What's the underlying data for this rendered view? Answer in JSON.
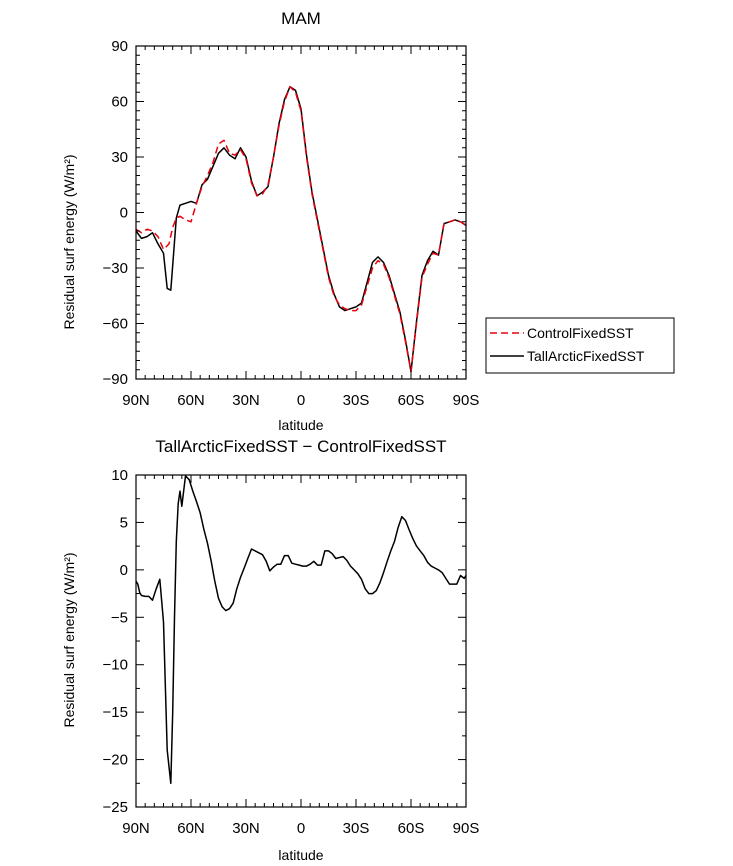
{
  "chart_data": [
    {
      "type": "line",
      "title": "MAM",
      "xlabel": "latitude",
      "ylabel": "Residual surf energy (W/m²)",
      "ylim": [
        -90,
        90
      ],
      "xlim": [
        90,
        -90
      ],
      "x_tick_values": [
        90,
        60,
        30,
        0,
        -30,
        -60,
        -90
      ],
      "x_tick_labels": [
        "90N",
        "60N",
        "30N",
        "0",
        "30S",
        "60S",
        "90S"
      ],
      "y_tick_values": [
        -90,
        -60,
        -30,
        0,
        30,
        60,
        90
      ],
      "y_tick_labels": [
        "−90",
        "−60",
        "−30",
        "0",
        "30",
        "60",
        "90"
      ],
      "grid": false,
      "legend_position": "right",
      "series": [
        {
          "name": "ControlFixedSST",
          "color": "#e8000b",
          "dash": "dashed",
          "x": [
            90,
            87,
            84,
            81,
            78,
            75,
            72,
            70,
            68,
            66,
            63,
            60,
            57,
            54,
            51,
            48,
            45,
            42,
            39,
            36,
            33,
            30,
            27,
            24,
            21,
            18,
            15,
            12,
            9,
            6,
            3,
            0,
            -3,
            -6,
            -9,
            -12,
            -15,
            -18,
            -21,
            -24,
            -27,
            -30,
            -33,
            -36,
            -39,
            -42,
            -45,
            -48,
            -51,
            -54,
            -57,
            -60,
            -63,
            -66,
            -69,
            -72,
            -75,
            -78,
            -81,
            -84,
            -87,
            -90
          ],
          "y": [
            -9,
            -11,
            -9,
            -10,
            -13,
            -20,
            -17,
            -8,
            -3,
            -2,
            -4,
            -5,
            5,
            14,
            20,
            27,
            37,
            39,
            32,
            31,
            34,
            29,
            16,
            9,
            10,
            15,
            30,
            47,
            60,
            68,
            65,
            55,
            30,
            10,
            -5,
            -20,
            -35,
            -45,
            -50,
            -52,
            -53,
            -53,
            -50,
            -40,
            -30,
            -26,
            -28,
            -35,
            -45,
            -55,
            -70,
            -86,
            -60,
            -35,
            -28,
            -22,
            -23,
            -6,
            -5,
            -4,
            -5,
            -7
          ]
        },
        {
          "name": "TallArcticFixedSST",
          "color": "#000000",
          "dash": "solid",
          "x": [
            90,
            87,
            84,
            81,
            78,
            75,
            73,
            71,
            68,
            66,
            63,
            60,
            57,
            54,
            51,
            48,
            45,
            42,
            39,
            36,
            33,
            30,
            27,
            24,
            21,
            18,
            15,
            12,
            9,
            6,
            3,
            0,
            -3,
            -6,
            -9,
            -12,
            -15,
            -18,
            -21,
            -24,
            -27,
            -30,
            -33,
            -36,
            -39,
            -42,
            -45,
            -48,
            -51,
            -54,
            -57,
            -60,
            -63,
            -66,
            -69,
            -72,
            -75,
            -78,
            -81,
            -84,
            -87,
            -90
          ],
          "y": [
            -10,
            -14,
            -13,
            -11,
            -17,
            -22,
            -41,
            -42,
            -3,
            4,
            5,
            6,
            5,
            15,
            18,
            25,
            32,
            35,
            31,
            29,
            35,
            30,
            17,
            9,
            11,
            14,
            30,
            48,
            61,
            68,
            66,
            56,
            31,
            11,
            -4,
            -19,
            -34,
            -44,
            -51,
            -53,
            -52,
            -51,
            -49,
            -38,
            -27,
            -24,
            -27,
            -34,
            -44,
            -54,
            -69,
            -86,
            -59,
            -34,
            -26,
            -21,
            -23,
            -6,
            -5,
            -4,
            -5,
            -7
          ]
        }
      ]
    },
    {
      "type": "line",
      "title": "TallArcticFixedSST − ControlFixedSST",
      "xlabel": "latitude",
      "ylabel": "Residual surf energy (W/m²)",
      "ylim": [
        -25,
        10
      ],
      "xlim": [
        90,
        -90
      ],
      "x_tick_values": [
        90,
        60,
        30,
        0,
        -30,
        -60,
        -90
      ],
      "x_tick_labels": [
        "90N",
        "60N",
        "30N",
        "0",
        "30S",
        "60S",
        "90S"
      ],
      "y_tick_values": [
        -25,
        -20,
        -15,
        -10,
        -5,
        0,
        5,
        10
      ],
      "y_tick_labels": [
        "−25",
        "−20",
        "−15",
        "−10",
        "−5",
        "0",
        "5",
        "10"
      ],
      "grid": false,
      "series": [
        {
          "color": "#000000",
          "dash": "solid",
          "x": [
            90,
            89,
            88,
            87,
            85,
            83,
            81,
            79,
            77,
            75,
            73,
            71,
            70,
            69,
            68,
            67,
            66,
            65,
            63,
            61,
            59,
            57,
            55,
            53,
            51,
            49,
            47,
            45,
            43,
            41,
            39,
            37,
            35,
            33,
            31,
            29,
            27,
            25,
            23,
            21,
            19,
            17,
            15,
            13,
            11,
            9,
            7,
            5,
            3,
            1,
            -1,
            -3,
            -5,
            -7,
            -9,
            -11,
            -13,
            -15,
            -17,
            -19,
            -21,
            -23,
            -25,
            -27,
            -29,
            -31,
            -33,
            -35,
            -37,
            -39,
            -41,
            -43,
            -45,
            -47,
            -49,
            -51,
            -53,
            -55,
            -57,
            -59,
            -61,
            -63,
            -65,
            -67,
            -69,
            -71,
            -73,
            -75,
            -77,
            -79,
            -81,
            -83,
            -85,
            -87,
            -89,
            -90
          ],
          "y": [
            -1.2,
            -1.5,
            -2.4,
            -2.7,
            -2.8,
            -2.8,
            -3.2,
            -2.0,
            -1.0,
            -5.5,
            -19.0,
            -22.5,
            -15.0,
            -5.0,
            3.0,
            7.0,
            8.3,
            6.7,
            9.9,
            9.5,
            8.3,
            7.2,
            6.0,
            4.3,
            2.8,
            0.9,
            -1.2,
            -3.0,
            -3.9,
            -4.3,
            -4.1,
            -3.5,
            -2.0,
            -0.8,
            0.2,
            1.2,
            2.2,
            2.0,
            1.8,
            1.6,
            0.9,
            -0.1,
            0.3,
            0.6,
            0.6,
            1.5,
            1.5,
            0.7,
            0.6,
            0.5,
            0.4,
            0.4,
            0.6,
            0.9,
            0.5,
            0.5,
            2.0,
            2.0,
            1.7,
            1.2,
            1.3,
            1.4,
            1.0,
            0.4,
            0.0,
            -0.4,
            -1.0,
            -2.0,
            -2.5,
            -2.5,
            -2.2,
            -1.4,
            -0.3,
            0.9,
            2.0,
            3.0,
            4.5,
            5.6,
            5.2,
            4.2,
            3.3,
            2.5,
            2.0,
            1.5,
            0.8,
            0.4,
            0.2,
            0.0,
            -0.3,
            -0.9,
            -1.5,
            -1.5,
            -1.5,
            -0.6,
            -0.9,
            -0.6
          ]
        }
      ]
    }
  ]
}
